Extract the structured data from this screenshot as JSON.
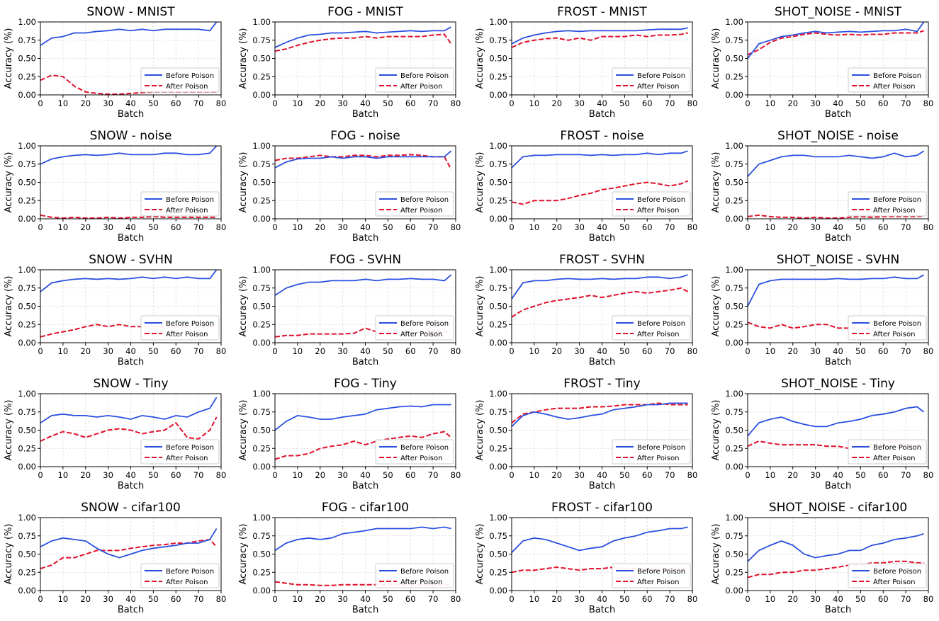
{
  "legend": {
    "before": "Before Poison",
    "after": "After Poison",
    "placement": "lower-right"
  },
  "colors": {
    "before": "#2a4fe0",
    "after": "#e0102a",
    "grid": "#dddddd"
  },
  "chart_data": {
    "type": "line",
    "layout": "grid 5 rows x 4 columns",
    "xlabel": "Batch",
    "ylabel": "Accuracy (%)",
    "xlim": [
      0,
      80
    ],
    "ylim": [
      0,
      1
    ],
    "xticks": [
      "0",
      "10",
      "20",
      "30",
      "40",
      "50",
      "60",
      "70",
      "80"
    ],
    "yticks": [
      "0.00",
      "0.25",
      "0.50",
      "0.75",
      "1.00"
    ],
    "grid": true,
    "x": [
      0,
      5,
      10,
      15,
      20,
      25,
      30,
      35,
      40,
      45,
      50,
      55,
      60,
      65,
      70,
      75,
      78
    ],
    "panels": [
      {
        "title": "SNOW - MNIST",
        "before": [
          0.68,
          0.78,
          0.8,
          0.85,
          0.85,
          0.87,
          0.88,
          0.9,
          0.88,
          0.9,
          0.88,
          0.9,
          0.9,
          0.9,
          0.9,
          0.88,
          1.0
        ],
        "after": [
          0.2,
          0.27,
          0.25,
          0.12,
          0.04,
          0.02,
          0.01,
          0.01,
          0.02,
          0.03,
          0.04,
          0.04,
          0.04,
          0.04,
          0.04,
          0.04,
          0.04
        ]
      },
      {
        "title": "FOG - MNIST",
        "before": [
          0.65,
          0.72,
          0.78,
          0.82,
          0.83,
          0.85,
          0.85,
          0.86,
          0.87,
          0.85,
          0.86,
          0.87,
          0.88,
          0.87,
          0.88,
          0.88,
          0.93
        ],
        "after": [
          0.6,
          0.63,
          0.68,
          0.72,
          0.75,
          0.77,
          0.78,
          0.78,
          0.8,
          0.78,
          0.8,
          0.8,
          0.8,
          0.8,
          0.82,
          0.83,
          0.7
        ]
      },
      {
        "title": "FROST - MNIST",
        "before": [
          0.7,
          0.78,
          0.82,
          0.85,
          0.87,
          0.88,
          0.87,
          0.88,
          0.88,
          0.88,
          0.88,
          0.88,
          0.89,
          0.9,
          0.9,
          0.9,
          0.92
        ],
        "after": [
          0.65,
          0.72,
          0.75,
          0.77,
          0.78,
          0.75,
          0.78,
          0.75,
          0.8,
          0.8,
          0.8,
          0.82,
          0.8,
          0.82,
          0.82,
          0.83,
          0.85
        ]
      },
      {
        "title": "SHOT_NOISE - MNIST",
        "before": [
          0.5,
          0.7,
          0.75,
          0.8,
          0.82,
          0.85,
          0.87,
          0.85,
          0.86,
          0.87,
          0.86,
          0.87,
          0.88,
          0.88,
          0.9,
          0.87,
          1.0
        ],
        "after": [
          0.55,
          0.62,
          0.72,
          0.78,
          0.8,
          0.83,
          0.85,
          0.83,
          0.82,
          0.83,
          0.82,
          0.83,
          0.83,
          0.85,
          0.85,
          0.85,
          0.88
        ]
      },
      {
        "title": "SNOW - noise",
        "before": [
          0.75,
          0.82,
          0.85,
          0.87,
          0.88,
          0.87,
          0.88,
          0.9,
          0.88,
          0.88,
          0.88,
          0.9,
          0.9,
          0.88,
          0.88,
          0.9,
          1.0
        ],
        "after": [
          0.05,
          0.02,
          0.01,
          0.02,
          0.01,
          0.01,
          0.02,
          0.01,
          0.02,
          0.02,
          0.03,
          0.02,
          0.02,
          0.02,
          0.02,
          0.02,
          0.02
        ]
      },
      {
        "title": "FOG - noise",
        "before": [
          0.7,
          0.78,
          0.82,
          0.83,
          0.83,
          0.85,
          0.83,
          0.85,
          0.85,
          0.83,
          0.85,
          0.85,
          0.85,
          0.85,
          0.85,
          0.85,
          0.93
        ],
        "after": [
          0.8,
          0.83,
          0.83,
          0.85,
          0.87,
          0.85,
          0.85,
          0.87,
          0.87,
          0.85,
          0.87,
          0.87,
          0.88,
          0.87,
          0.85,
          0.85,
          0.68
        ]
      },
      {
        "title": "FROST - noise",
        "before": [
          0.7,
          0.85,
          0.87,
          0.87,
          0.88,
          0.88,
          0.88,
          0.87,
          0.88,
          0.87,
          0.88,
          0.88,
          0.9,
          0.88,
          0.9,
          0.9,
          0.93
        ],
        "after": [
          0.23,
          0.2,
          0.25,
          0.25,
          0.25,
          0.28,
          0.32,
          0.35,
          0.4,
          0.42,
          0.45,
          0.48,
          0.5,
          0.48,
          0.45,
          0.48,
          0.52
        ]
      },
      {
        "title": "SHOT_NOISE - noise",
        "before": [
          0.58,
          0.75,
          0.8,
          0.85,
          0.87,
          0.87,
          0.85,
          0.85,
          0.85,
          0.87,
          0.85,
          0.83,
          0.85,
          0.9,
          0.85,
          0.87,
          0.93
        ],
        "after": [
          0.03,
          0.05,
          0.03,
          0.02,
          0.02,
          0.01,
          0.02,
          0.01,
          0.01,
          0.02,
          0.03,
          0.02,
          0.03,
          0.03,
          0.03,
          0.03,
          0.04
        ]
      },
      {
        "title": "SNOW - SVHN",
        "before": [
          0.7,
          0.82,
          0.85,
          0.87,
          0.88,
          0.87,
          0.88,
          0.87,
          0.88,
          0.9,
          0.88,
          0.9,
          0.88,
          0.9,
          0.88,
          0.88,
          1.0
        ],
        "after": [
          0.08,
          0.12,
          0.15,
          0.18,
          0.22,
          0.25,
          0.22,
          0.25,
          0.22,
          0.22,
          0.22,
          0.22,
          0.22,
          0.22,
          0.22,
          0.22,
          0.22
        ]
      },
      {
        "title": "FOG - SVHN",
        "before": [
          0.65,
          0.75,
          0.8,
          0.83,
          0.83,
          0.85,
          0.85,
          0.85,
          0.87,
          0.85,
          0.87,
          0.87,
          0.88,
          0.87,
          0.87,
          0.85,
          0.93
        ],
        "after": [
          0.08,
          0.1,
          0.1,
          0.12,
          0.12,
          0.12,
          0.12,
          0.13,
          0.2,
          0.15,
          0.15,
          0.15,
          0.15,
          0.15,
          0.15,
          0.15,
          0.15
        ]
      },
      {
        "title": "FROST - SVHN",
        "before": [
          0.6,
          0.82,
          0.85,
          0.85,
          0.87,
          0.88,
          0.87,
          0.87,
          0.88,
          0.87,
          0.88,
          0.88,
          0.9,
          0.9,
          0.88,
          0.9,
          0.93
        ],
        "after": [
          0.35,
          0.45,
          0.5,
          0.55,
          0.58,
          0.6,
          0.62,
          0.65,
          0.62,
          0.65,
          0.68,
          0.7,
          0.68,
          0.7,
          0.72,
          0.75,
          0.7
        ]
      },
      {
        "title": "SHOT_NOISE - SVHN",
        "before": [
          0.5,
          0.8,
          0.85,
          0.87,
          0.87,
          0.87,
          0.87,
          0.87,
          0.88,
          0.87,
          0.87,
          0.88,
          0.88,
          0.9,
          0.88,
          0.88,
          0.93
        ],
        "after": [
          0.28,
          0.22,
          0.2,
          0.25,
          0.2,
          0.22,
          0.25,
          0.25,
          0.2,
          0.2,
          0.2,
          0.2,
          0.2,
          0.2,
          0.2,
          0.2,
          0.2
        ]
      },
      {
        "title": "SNOW - Tiny",
        "before": [
          0.6,
          0.7,
          0.72,
          0.7,
          0.7,
          0.68,
          0.7,
          0.68,
          0.65,
          0.7,
          0.68,
          0.65,
          0.7,
          0.68,
          0.75,
          0.8,
          0.95
        ],
        "after": [
          0.35,
          0.42,
          0.48,
          0.45,
          0.4,
          0.45,
          0.5,
          0.52,
          0.5,
          0.45,
          0.48,
          0.5,
          0.6,
          0.4,
          0.38,
          0.5,
          0.68
        ]
      },
      {
        "title": "FOG - Tiny",
        "before": [
          0.5,
          0.62,
          0.7,
          0.68,
          0.65,
          0.65,
          0.68,
          0.7,
          0.72,
          0.78,
          0.8,
          0.82,
          0.83,
          0.82,
          0.85,
          0.85,
          0.85
        ],
        "after": [
          0.1,
          0.15,
          0.15,
          0.18,
          0.25,
          0.28,
          0.3,
          0.35,
          0.3,
          0.35,
          0.38,
          0.4,
          0.42,
          0.4,
          0.45,
          0.48,
          0.4
        ]
      },
      {
        "title": "FROST - Tiny",
        "before": [
          0.55,
          0.7,
          0.75,
          0.72,
          0.68,
          0.65,
          0.67,
          0.7,
          0.72,
          0.78,
          0.8,
          0.82,
          0.85,
          0.85,
          0.87,
          0.87,
          0.87
        ],
        "after": [
          0.6,
          0.72,
          0.75,
          0.78,
          0.8,
          0.8,
          0.8,
          0.82,
          0.82,
          0.83,
          0.85,
          0.85,
          0.85,
          0.87,
          0.85,
          0.85,
          0.85
        ]
      },
      {
        "title": "SHOT_NOISE - Tiny",
        "before": [
          0.42,
          0.6,
          0.65,
          0.68,
          0.62,
          0.58,
          0.55,
          0.55,
          0.6,
          0.62,
          0.65,
          0.7,
          0.72,
          0.75,
          0.8,
          0.82,
          0.75
        ],
        "after": [
          0.28,
          0.35,
          0.32,
          0.3,
          0.3,
          0.3,
          0.3,
          0.28,
          0.28,
          0.25,
          0.28,
          0.3,
          0.32,
          0.35,
          0.3,
          0.3,
          0.3
        ]
      },
      {
        "title": "SNOW - cifar100",
        "before": [
          0.6,
          0.68,
          0.72,
          0.7,
          0.68,
          0.58,
          0.5,
          0.45,
          0.5,
          0.55,
          0.58,
          0.6,
          0.62,
          0.65,
          0.65,
          0.7,
          0.85
        ],
        "after": [
          0.3,
          0.35,
          0.45,
          0.45,
          0.5,
          0.55,
          0.55,
          0.55,
          0.58,
          0.6,
          0.62,
          0.63,
          0.65,
          0.65,
          0.68,
          0.7,
          0.6
        ]
      },
      {
        "title": "FOG - cifar100",
        "before": [
          0.55,
          0.65,
          0.7,
          0.72,
          0.7,
          0.72,
          0.78,
          0.8,
          0.82,
          0.85,
          0.85,
          0.85,
          0.85,
          0.87,
          0.85,
          0.87,
          0.85
        ],
        "after": [
          0.12,
          0.1,
          0.08,
          0.08,
          0.07,
          0.07,
          0.08,
          0.08,
          0.08,
          0.08,
          0.08,
          0.08,
          0.08,
          0.08,
          0.08,
          0.08,
          0.08
        ]
      },
      {
        "title": "FROST - cifar100",
        "before": [
          0.52,
          0.68,
          0.72,
          0.7,
          0.65,
          0.6,
          0.55,
          0.58,
          0.6,
          0.68,
          0.72,
          0.75,
          0.8,
          0.82,
          0.85,
          0.85,
          0.87
        ],
        "after": [
          0.25,
          0.28,
          0.28,
          0.3,
          0.32,
          0.3,
          0.28,
          0.3,
          0.3,
          0.32,
          0.3,
          0.3,
          0.3,
          0.3,
          0.3,
          0.3,
          0.3
        ]
      },
      {
        "title": "SHOT_NOISE - cifar100",
        "before": [
          0.4,
          0.55,
          0.62,
          0.68,
          0.62,
          0.5,
          0.45,
          0.48,
          0.5,
          0.55,
          0.55,
          0.62,
          0.65,
          0.7,
          0.72,
          0.75,
          0.78
        ],
        "after": [
          0.18,
          0.22,
          0.22,
          0.25,
          0.25,
          0.28,
          0.28,
          0.3,
          0.32,
          0.35,
          0.35,
          0.38,
          0.38,
          0.4,
          0.4,
          0.38,
          0.38
        ]
      }
    ]
  }
}
